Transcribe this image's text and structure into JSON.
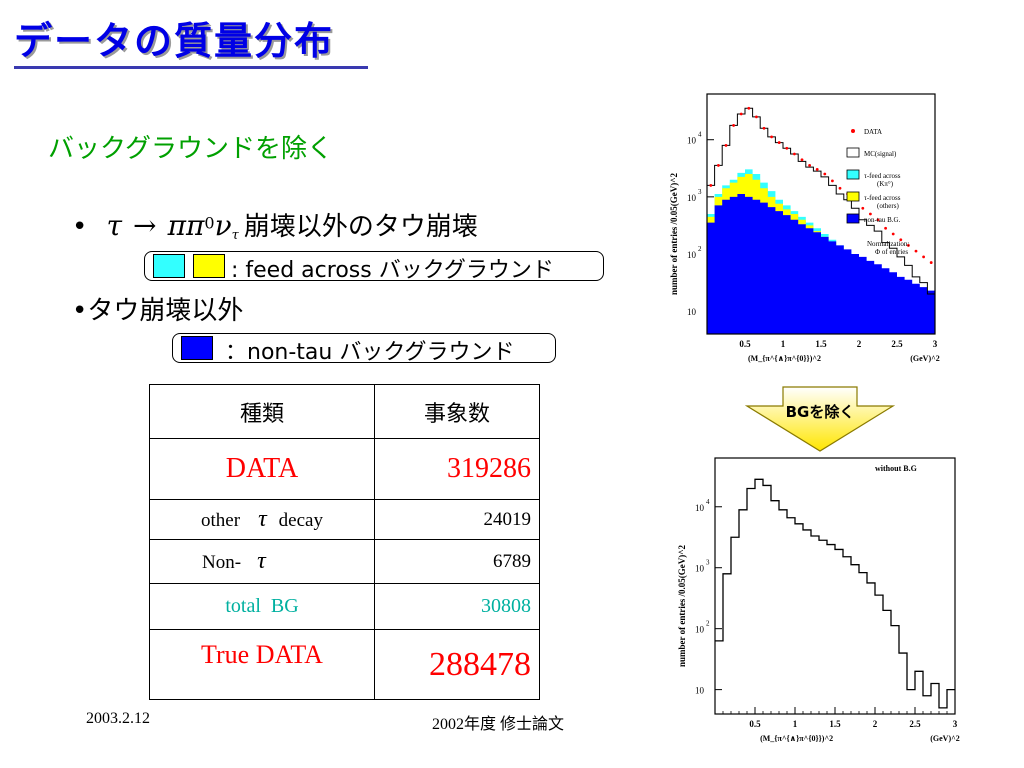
{
  "slide": {
    "title": "データの質量分布",
    "subtitle": "バックグラウンドを除く",
    "bullet1": {
      "marker": "•",
      "formula": {
        "tau": "τ",
        "arrow": "→",
        "pipi": "ππ",
        "zero": "0",
        "nu": "ν",
        "tau_sub": "τ"
      },
      "text": "崩壊以外のタウ崩壊",
      "legend_text": ": feed across バックグラウンド",
      "swatch_colors": [
        "#33ffff",
        "#ffff00"
      ]
    },
    "bullet2": {
      "text": "•タウ崩壊以外",
      "legend_text": "：non-tau バックグラウンド",
      "swatch_color": "#0000ff"
    },
    "arrow_label": "BGを除く",
    "footer_date": "2003.2.12",
    "footer_right": "2002年度 修士論文"
  },
  "table": {
    "header": [
      "種類",
      "事象数"
    ],
    "rows": [
      {
        "label": "DATA",
        "value": "319286",
        "color": "#ff0000"
      },
      {
        "label_prefix": "other",
        "label_symbol": "τ",
        "label_suffix": "decay",
        "value": "24019",
        "color": "#000000"
      },
      {
        "label_prefix": "Non-",
        "label_symbol": "τ",
        "value": "6789",
        "color": "#000000"
      },
      {
        "label": "total  BG",
        "value": "30808",
        "color": "#00b0a0"
      },
      {
        "label": "True DATA",
        "value": "288478",
        "color": "#ff0000"
      }
    ]
  },
  "chart_data": [
    {
      "type": "histogram",
      "title": "",
      "xlabel": "(M_{π^{∧}π^{0}})^2",
      "xunit": "(GeV)^2",
      "ylabel": "number of entries  /0.05(GeV)^2",
      "xlim": [
        0,
        3
      ],
      "y_log": true,
      "ytick_labels": [
        "10",
        "10",
        "10",
        "10"
      ],
      "ytick_exponents": [
        "",
        "2",
        "3",
        "4"
      ],
      "xtick_labels": [
        "0.5",
        "1",
        "1.5",
        "2",
        "2.5",
        "3"
      ],
      "legend": [
        {
          "label": "DATA",
          "marker": "dot",
          "color": "#ff0000"
        },
        {
          "label": "MC(signal)",
          "marker": "box",
          "color": "#ffffff"
        },
        {
          "label": "τ-feed across",
          "label2": "(Kπ°)",
          "marker": "box",
          "color": "#33ffff"
        },
        {
          "label": "τ-feed across",
          "label2": "(others)",
          "marker": "box",
          "color": "#ffff00"
        },
        {
          "label": "non-tau B.G.",
          "marker": "box",
          "color": "#0000ff"
        }
      ],
      "note": [
        "Normalization:",
        "Φ of entries"
      ],
      "bins_x": [
        0.0,
        0.1,
        0.2,
        0.3,
        0.4,
        0.5,
        0.6,
        0.7,
        0.8,
        0.9,
        1.0,
        1.1,
        1.2,
        1.3,
        1.4,
        1.5,
        1.6,
        1.7,
        1.8,
        1.9,
        2.0,
        2.1,
        2.2,
        2.3,
        2.4,
        2.5,
        2.6,
        2.7,
        2.8,
        2.9,
        3.0
      ],
      "series": [
        {
          "kind": "mc_signal",
          "color": "#000000",
          "log10_values": [
            3.2,
            3.55,
            3.9,
            4.25,
            4.45,
            4.55,
            4.4,
            4.2,
            4.05,
            3.95,
            3.85,
            3.75,
            3.62,
            3.52,
            3.45,
            3.35,
            3.2,
            3.05,
            2.95,
            2.8,
            2.6,
            2.5,
            2.4,
            2.2,
            2.1,
            1.95,
            1.8,
            1.6,
            1.5,
            1.3
          ]
        },
        {
          "kind": "data",
          "color": "#ff0000",
          "log10_values": [
            3.2,
            3.55,
            3.9,
            4.25,
            4.45,
            4.55,
            4.4,
            4.2,
            4.05,
            3.95,
            3.85,
            3.75,
            3.65,
            3.55,
            3.48,
            3.4,
            3.28,
            3.15,
            3.05,
            2.95,
            2.8,
            2.7,
            2.6,
            2.45,
            2.35,
            2.25,
            2.15,
            2.05,
            1.95,
            1.85
          ]
        },
        {
          "kind": "feed_kpi0",
          "color": "#33ffff",
          "log10_values": [
            2.7,
            3.05,
            3.2,
            3.3,
            3.42,
            3.48,
            3.4,
            3.25,
            3.1,
            2.95,
            2.85,
            2.75,
            2.65,
            2.55,
            2.45,
            2.35,
            2.25,
            2.15,
            2.05,
            1.95,
            1.9,
            1.8,
            1.75,
            1.65,
            1.6,
            1.5,
            1.45,
            1.38,
            1.32,
            1.25
          ]
        },
        {
          "kind": "feed_others",
          "color": "#ffff00",
          "log10_values": [
            2.65,
            3.0,
            3.15,
            3.25,
            3.35,
            3.4,
            3.3,
            3.15,
            3.0,
            2.88,
            2.78,
            2.7,
            2.6,
            2.5,
            2.4,
            2.3,
            2.2,
            2.1,
            2.0,
            1.92,
            1.85,
            1.78,
            1.7,
            1.62,
            1.55,
            1.48,
            1.42,
            1.35,
            1.3,
            1.22
          ]
        },
        {
          "kind": "non_tau",
          "color": "#0000ff",
          "log10_values": [
            2.55,
            2.85,
            2.95,
            3.0,
            3.05,
            3.0,
            2.95,
            2.9,
            2.82,
            2.75,
            2.68,
            2.6,
            2.52,
            2.45,
            2.38,
            2.3,
            2.22,
            2.15,
            2.08,
            2.0,
            1.95,
            1.88,
            1.82,
            1.75,
            1.68,
            1.6,
            1.55,
            1.48,
            1.42,
            1.36
          ]
        }
      ]
    },
    {
      "type": "histogram",
      "title": "without B.G",
      "xlabel": "(M_{π^{∧}π^{0}})^2",
      "xunit": "(GeV)^2",
      "ylabel": "number of entries  /0.05(GeV)^2",
      "xlim": [
        0,
        3
      ],
      "y_log": true,
      "ytick_labels": [
        "10",
        "10",
        "10",
        "10"
      ],
      "ytick_exponents": [
        "",
        "2",
        "3",
        "4"
      ],
      "xtick_labels": [
        "0.5",
        "1",
        "1.5",
        "2",
        "2.5",
        "3"
      ],
      "bins_x": [
        0.0,
        0.1,
        0.2,
        0.3,
        0.4,
        0.5,
        0.6,
        0.7,
        0.8,
        0.9,
        1.0,
        1.1,
        1.2,
        1.3,
        1.4,
        1.5,
        1.6,
        1.7,
        1.8,
        1.9,
        2.0,
        2.1,
        2.2,
        2.3,
        2.4,
        2.5,
        2.6,
        2.7,
        2.8,
        2.9,
        3.0
      ],
      "series": [
        {
          "kind": "true_data",
          "color": "#000000",
          "log10_values": [
            1.8,
            2.9,
            3.5,
            3.95,
            4.3,
            4.45,
            4.35,
            4.1,
            3.95,
            3.82,
            3.72,
            3.62,
            3.52,
            3.45,
            3.38,
            3.3,
            3.18,
            3.05,
            2.92,
            2.75,
            2.55,
            2.3,
            2.05,
            1.6,
            1.0,
            1.3,
            0.9,
            1.1,
            0.7,
            1.0
          ]
        }
      ]
    }
  ]
}
